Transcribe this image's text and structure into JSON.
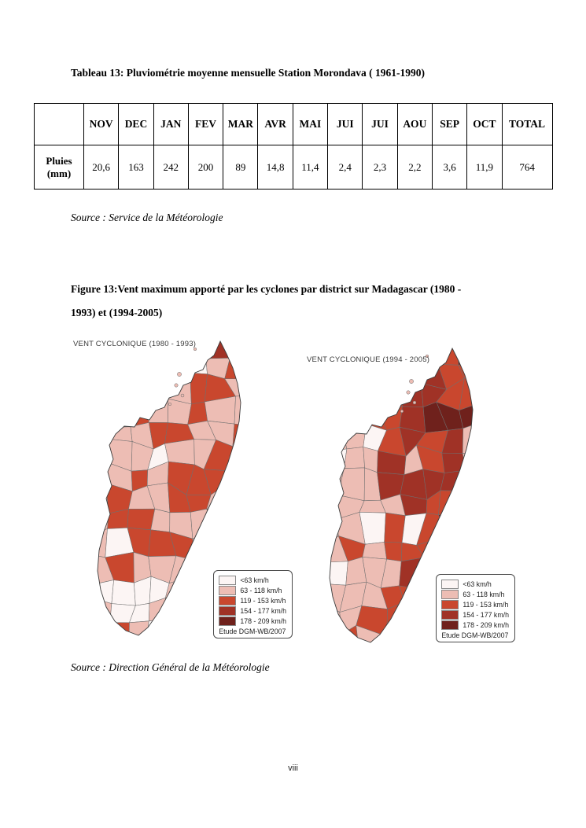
{
  "page": {
    "number": "viii"
  },
  "table_section": {
    "title": "Tableau 13: Pluviométrie moyenne mensuelle Station Morondava ( 1961-1990)",
    "source": "Source : Service de la Météorologie",
    "table": {
      "row_header": "Pluies (mm)",
      "columns": [
        "NOV",
        "DEC",
        "JAN",
        "FEV",
        "MAR",
        "AVR",
        "MAI",
        "JUI",
        "JUI",
        "AOU",
        "SEP",
        "OCT",
        "TOTAL"
      ],
      "values": [
        "20,6",
        "163",
        "242",
        "200",
        "89",
        "14,8",
        "11,4",
        "2,4",
        "2,3",
        "2,2",
        "3,6",
        "11,9",
        "764"
      ]
    }
  },
  "figure_section": {
    "caption_lines": [
      "Figure 13:Vent maximum apporté par les cyclones par district sur Madagascar (1980 -",
      "1993) et (1994-2005)"
    ],
    "source": "Source : Direction Général de la Météorologie",
    "maps": [
      {
        "title": "VENT CYCLONIQUE (1980 - 1993)"
      },
      {
        "title": "VENT CYCLONIQUE (1994 - 2005)"
      }
    ],
    "legend": {
      "entries": [
        {
          "label": "<63 km/h",
          "color": "#fcf5f4"
        },
        {
          "label": "63 - 118 km/h",
          "color": "#edbdb4"
        },
        {
          "label": "119 - 153 km/h",
          "color": "#c9472e"
        },
        {
          "label": "154 - 177 km/h",
          "color": "#a03226"
        },
        {
          "label": "178 - 209 km/h",
          "color": "#6f211c"
        }
      ],
      "footer": "Etude DGM-WB/2007"
    }
  }
}
